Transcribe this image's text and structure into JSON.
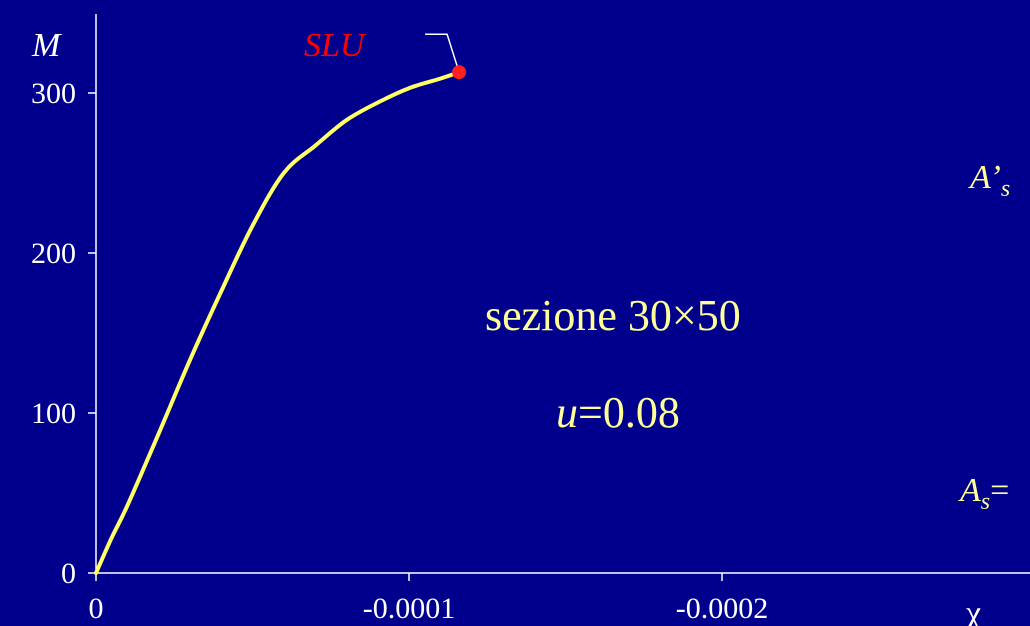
{
  "chart_data": {
    "type": "line",
    "xlabel": "χ",
    "ylabel": "M",
    "xlim": [
      0,
      -0.00029
    ],
    "ylim": [
      0,
      300
    ],
    "x_ticks": [
      "0",
      "-0.0001",
      "-0.0002"
    ],
    "x_tick_values": [
      0,
      -0.0001,
      -0.0002
    ],
    "y_ticks": [
      "0",
      "100",
      "200",
      "300"
    ],
    "y_tick_values": [
      0,
      100,
      200,
      300
    ],
    "grid": false,
    "series": [
      {
        "color": "#ffff66",
        "x": [
          0,
          -5e-06,
          -1e-05,
          -2e-05,
          -3e-05,
          -4e-05,
          -5e-05,
          -6e-05,
          -7e-05,
          -8e-05,
          -9e-05,
          -0.0001,
          -0.00011,
          -0.000116
        ],
        "y": [
          0,
          22,
          42,
          87,
          133,
          176,
          217,
          250,
          267,
          283,
          294,
          303,
          309,
          313
        ]
      }
    ],
    "marker": {
      "label": "SLU",
      "x": -0.000116,
      "y": 313,
      "color": "#ff2020"
    }
  },
  "annotations": {
    "section": "sezione 30×50",
    "u_var": "u",
    "u_value": "=0.08",
    "top_steel_fragment": "A’s",
    "bottom_steel_var": "As",
    "bottom_steel_rest": "="
  }
}
